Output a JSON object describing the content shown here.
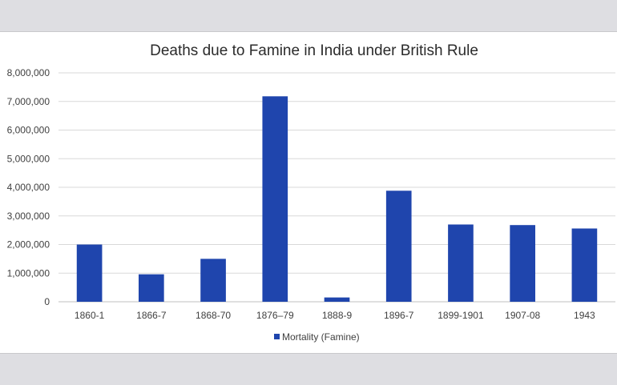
{
  "chart_data": {
    "type": "bar",
    "title": "Deaths due to Famine in India under British Rule",
    "xlabel": "",
    "ylabel": "",
    "categories": [
      "1860-1",
      "1866-7",
      "1868-70",
      "1876–79",
      "1888-9",
      "1896-7",
      "1899-1901",
      "1907-08",
      "1943"
    ],
    "series": [
      {
        "name": "Mortality (Famine)",
        "values": [
          2000000,
          960000,
          1500000,
          7180000,
          150000,
          3880000,
          2700000,
          2680000,
          2560000
        ],
        "color": "#1f45ad"
      }
    ],
    "ylim": [
      0,
      8000000
    ],
    "yticks": [
      "0",
      "1,000,000",
      "2,000,000",
      "3,000,000",
      "4,000,000",
      "5,000,000",
      "6,000,000",
      "7,000,000",
      "8,000,000"
    ],
    "grid": true,
    "legend_position": "bottom"
  },
  "colors": {
    "page_background": "#dedee2",
    "chart_background": "#ffffff",
    "bar": "#1f45ad"
  }
}
